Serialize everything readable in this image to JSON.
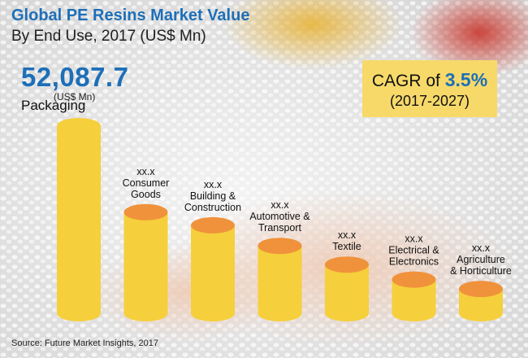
{
  "title": "Global PE Resins Market Value",
  "subtitle": "By End Use, 2017 (US$ Mn)",
  "highlight": {
    "value": "52,087.7",
    "unit": "(US$ Mn)"
  },
  "cagr": {
    "prefix": "CAGR of",
    "value": "3.5%",
    "period": "(2017-2027)"
  },
  "source": "Source: Future Market Insights, 2017",
  "colors": {
    "bar_body": "#f6cf3c",
    "bar_top": "#f0923c",
    "title": "#1d6fb8",
    "cagr_box": "#f7d96a"
  },
  "chart_data": {
    "type": "bar",
    "categories": [
      "Packaging",
      "Consumer Goods",
      "Building & Construction",
      "Automotive & Transport",
      "Textile",
      "Electrical & Electronics",
      "Agriculture & Horticulture"
    ],
    "category_lines": [
      [
        "Packaging"
      ],
      [
        "Consumer",
        "Goods"
      ],
      [
        "Building &",
        "Construction"
      ],
      [
        "Automotive &",
        "Transport"
      ],
      [
        "Textile"
      ],
      [
        "Electrical &",
        "Electronics"
      ],
      [
        "Agriculture",
        "& Horticulture"
      ]
    ],
    "values": [
      52087.7,
      null,
      null,
      null,
      null,
      null,
      null
    ],
    "data_labels": [
      "52,087.7",
      "xx.x",
      "xx.x",
      "xx.x",
      "xx.x",
      "xx.x",
      "xx.x"
    ],
    "relative_heights": [
      1.0,
      0.54,
      0.47,
      0.36,
      0.26,
      0.18,
      0.13
    ],
    "title": "Global PE Resins Market Value",
    "ylabel": "US$ Mn"
  }
}
